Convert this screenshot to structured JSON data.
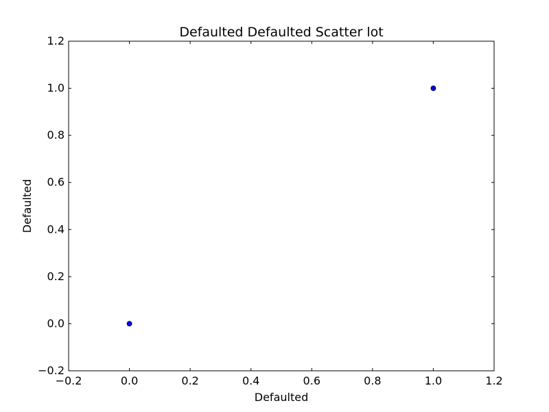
{
  "chart_data": {
    "type": "scatter",
    "title": "Defaulted Defaulted Scatter lot",
    "xlabel": "Defaulted",
    "ylabel": "Defaulted",
    "xlim": [
      -0.2,
      1.2
    ],
    "ylim": [
      -0.2,
      1.2
    ],
    "xticks": [
      -0.2,
      0.0,
      0.2,
      0.4,
      0.6,
      0.8,
      1.0,
      1.2
    ],
    "yticks": [
      -0.2,
      0.0,
      0.2,
      0.4,
      0.6,
      0.8,
      1.0,
      1.2
    ],
    "xtick_labels": [
      "−0.2",
      "0.0",
      "0.2",
      "0.4",
      "0.6",
      "0.8",
      "1.0",
      "1.2"
    ],
    "ytick_labels": [
      "−0.2",
      "0.0",
      "0.2",
      "0.4",
      "0.6",
      "0.8",
      "1.0",
      "1.2"
    ],
    "grid": false,
    "series": [
      {
        "x": [
          0,
          1
        ],
        "y": [
          0,
          1
        ],
        "color": "#0000ff"
      }
    ]
  }
}
